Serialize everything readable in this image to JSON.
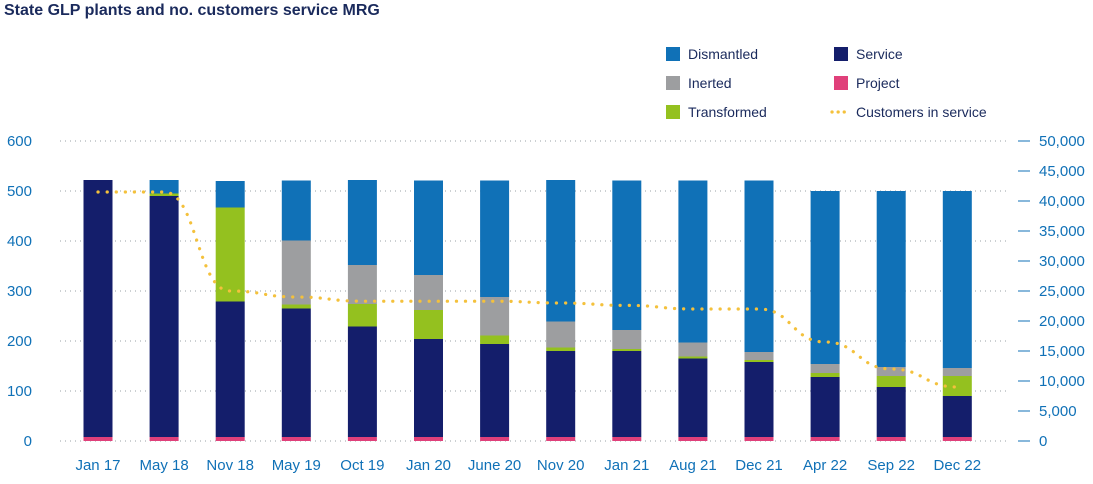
{
  "chart_data": {
    "type": "bar",
    "stacked": true,
    "title": "State GLP plants and no. customers service MRG",
    "categories": [
      "Jan 17",
      "May 18",
      "Nov 18",
      "May 19",
      "Oct 19",
      "Jan 20",
      "June 20",
      "Nov 20",
      "Jan 21",
      "Aug 21",
      "Dec 21",
      "Apr 22",
      "Sep 22",
      "Dec 22"
    ],
    "series": [
      {
        "name": "Project",
        "color": "#e0407a",
        "values": [
          8,
          8,
          8,
          8,
          8,
          8,
          8,
          8,
          8,
          8,
          8,
          8,
          8,
          8
        ]
      },
      {
        "name": "Service",
        "color": "#141e6b",
        "values": [
          514,
          482,
          271,
          257,
          221,
          196,
          186,
          172,
          172,
          157,
          150,
          120,
          100,
          82
        ]
      },
      {
        "name": "Transformed",
        "color": "#94c11f",
        "values": [
          0,
          5,
          188,
          8,
          45,
          58,
          17,
          7,
          4,
          4,
          4,
          8,
          22,
          40
        ]
      },
      {
        "name": "Inerted",
        "color": "#9d9ea0",
        "values": [
          0,
          0,
          0,
          128,
          78,
          70,
          77,
          52,
          38,
          28,
          16,
          18,
          18,
          16
        ]
      },
      {
        "name": "Dismantled",
        "color": "#1071b7",
        "values": [
          0,
          27,
          53,
          120,
          170,
          189,
          233,
          283,
          299,
          324,
          343,
          346,
          352,
          354
        ]
      }
    ],
    "line_series": {
      "name": "Customers in service",
      "color": "#f4c13c",
      "axis": "right",
      "values": [
        41500,
        41500,
        25000,
        24000,
        23300,
        23300,
        23300,
        23000,
        22600,
        22000,
        22000,
        16500,
        12000,
        9000
      ]
    },
    "left_axis": {
      "min": 0,
      "max": 600,
      "ticks": [
        0,
        100,
        200,
        300,
        400,
        500,
        600
      ],
      "tick_labels": [
        "0",
        "100",
        "200",
        "300",
        "400",
        "500",
        "600"
      ]
    },
    "right_axis": {
      "min": 0,
      "max": 50000,
      "ticks": [
        0,
        5000,
        10000,
        15000,
        20000,
        25000,
        30000,
        35000,
        40000,
        45000,
        50000
      ],
      "tick_labels": [
        "0",
        "5,000",
        "10,000",
        "15,000",
        "20,000",
        "25,000",
        "30,000",
        "35,000",
        "40,000",
        "45,000",
        "50,000"
      ]
    },
    "legend": [
      {
        "name": "Dismantled",
        "color": "#1071b7",
        "kind": "square"
      },
      {
        "name": "Service",
        "color": "#141e6b",
        "kind": "square"
      },
      {
        "name": "Inerted",
        "color": "#9d9ea0",
        "kind": "square"
      },
      {
        "name": "Project",
        "color": "#e0407a",
        "kind": "square"
      },
      {
        "name": "Transformed",
        "color": "#94c11f",
        "kind": "square"
      },
      {
        "name": "Customers in service",
        "color": "#f4c13c",
        "kind": "dots"
      }
    ],
    "grid": true,
    "legend_position": "top-right"
  },
  "colors": {
    "axis_text": "#1071b7",
    "title": "#1a2a5c",
    "grid": "#9aa0a6",
    "legend_text": "#1a2a5c"
  }
}
